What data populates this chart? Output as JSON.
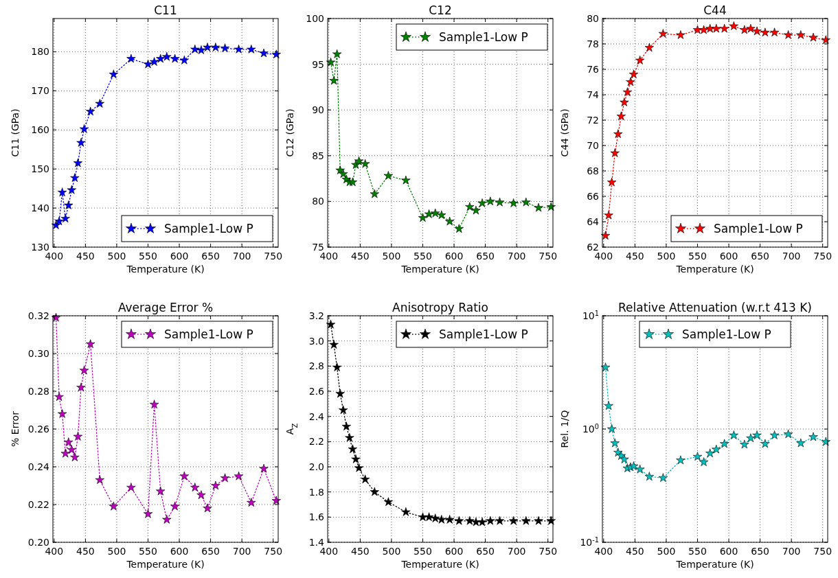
{
  "chart_data": [
    {
      "type": "line",
      "title": "C11",
      "xlabel": "Temperature (K)",
      "ylabel": "C11 (GPa)",
      "x": [
        403,
        408,
        413,
        418,
        423,
        428,
        433,
        438,
        443,
        448,
        458,
        473,
        495,
        523,
        550,
        560,
        570,
        580,
        593,
        608,
        625,
        635,
        645,
        658,
        673,
        695,
        715,
        735,
        755
      ],
      "series": [
        {
          "name": "Sample1-Low P",
          "color": "#0000ff",
          "values": [
            135.6,
            136.6,
            144.0,
            137.3,
            140.7,
            144.6,
            147.7,
            151.5,
            156.7,
            160.2,
            164.7,
            166.7,
            174.2,
            178.2,
            176.8,
            177.4,
            178.2,
            178.7,
            178.2,
            177.8,
            180.6,
            180.4,
            181.1,
            181.1,
            180.9,
            180.6,
            180.6,
            179.6,
            179.3
          ]
        }
      ],
      "xlim": [
        398,
        758
      ],
      "xticks": [
        400,
        450,
        500,
        550,
        600,
        650,
        700,
        750
      ],
      "ylim": [
        130,
        188.5
      ],
      "yticks": [
        130,
        140,
        150,
        160,
        170,
        180
      ],
      "grid": true,
      "legend": "bottom right",
      "marker": "star",
      "line_style": "dotted"
    },
    {
      "type": "line",
      "title": "C12",
      "xlabel": "Temperature (K)",
      "ylabel": "C12 (GPa)",
      "x": [
        403,
        408,
        413,
        418,
        423,
        428,
        433,
        438,
        443,
        448,
        458,
        473,
        495,
        523,
        550,
        560,
        570,
        580,
        593,
        608,
        625,
        635,
        645,
        658,
        673,
        695,
        715,
        735,
        755
      ],
      "series": [
        {
          "name": "Sample1-Low P",
          "color": "#008000",
          "values": [
            95.2,
            93.2,
            96.1,
            83.4,
            83.0,
            82.4,
            82.1,
            82.1,
            84.0,
            84.4,
            84.1,
            80.8,
            82.8,
            82.3,
            78.2,
            78.6,
            78.7,
            78.5,
            77.8,
            77.0,
            79.4,
            79.0,
            79.8,
            80.0,
            79.9,
            79.8,
            79.9,
            79.3,
            79.4
          ]
        }
      ],
      "xlim": [
        398,
        758
      ],
      "xticks": [
        400,
        450,
        500,
        550,
        600,
        650,
        700,
        750
      ],
      "ylim": [
        75,
        100
      ],
      "yticks": [
        75,
        80,
        85,
        90,
        95,
        100
      ],
      "grid": true,
      "legend": "top right",
      "marker": "star",
      "line_style": "dotted"
    },
    {
      "type": "line",
      "title": "C44",
      "xlabel": "Temperature (K)",
      "ylabel": "C44 (GPa)",
      "x": [
        403,
        408,
        413,
        418,
        423,
        428,
        433,
        438,
        443,
        448,
        458,
        473,
        495,
        523,
        550,
        560,
        570,
        580,
        593,
        608,
        625,
        635,
        645,
        658,
        673,
        695,
        715,
        735,
        755
      ],
      "series": [
        {
          "name": "Sample1-Low P",
          "color": "#ff0000",
          "values": [
            62.9,
            64.5,
            67.1,
            69.4,
            70.9,
            72.3,
            73.4,
            74.2,
            75.0,
            75.6,
            76.7,
            77.7,
            78.8,
            78.7,
            79.1,
            79.1,
            79.2,
            79.2,
            79.2,
            79.4,
            79.1,
            79.2,
            79.0,
            78.9,
            78.9,
            78.7,
            78.7,
            78.5,
            78.3
          ]
        }
      ],
      "xlim": [
        398,
        758
      ],
      "xticks": [
        400,
        450,
        500,
        550,
        600,
        650,
        700,
        750
      ],
      "ylim": [
        62,
        80
      ],
      "yticks": [
        62,
        64,
        66,
        68,
        70,
        72,
        74,
        76,
        78,
        80
      ],
      "grid": true,
      "legend": "bottom right",
      "marker": "star",
      "line_style": "dotted"
    },
    {
      "type": "line",
      "title": "Average Error %",
      "xlabel": "Temperature (K)",
      "ylabel": "% Error",
      "x": [
        403,
        408,
        413,
        418,
        423,
        428,
        433,
        438,
        443,
        448,
        458,
        473,
        495,
        523,
        550,
        560,
        570,
        580,
        593,
        608,
        625,
        635,
        645,
        658,
        673,
        695,
        715,
        735,
        755
      ],
      "series": [
        {
          "name": "Sample1-Low P",
          "color": "#bf00bf",
          "values": [
            0.319,
            0.277,
            0.268,
            0.247,
            0.253,
            0.249,
            0.245,
            0.256,
            0.282,
            0.291,
            0.305,
            0.233,
            0.219,
            0.229,
            0.215,
            0.273,
            0.227,
            0.212,
            0.219,
            0.235,
            0.229,
            0.225,
            0.218,
            0.23,
            0.234,
            0.235,
            0.221,
            0.239,
            0.222
          ]
        }
      ],
      "xlim": [
        398,
        758
      ],
      "xticks": [
        400,
        450,
        500,
        550,
        600,
        650,
        700,
        750
      ],
      "ylim": [
        0.2,
        0.32
      ],
      "yticks": [
        {
          "value": 0.2,
          "label": "0.20"
        },
        0.22,
        0.24,
        0.26,
        0.28,
        {
          "value": 0.3,
          "label": "0.30"
        },
        0.32
      ],
      "grid": true,
      "legend": "top right",
      "marker": "star",
      "line_style": "dotted"
    },
    {
      "type": "line",
      "title": "Anisotropy Ratio",
      "xlabel": "Temperature (K)",
      "ylabel": "A$_{Z}$",
      "x": [
        403,
        408,
        413,
        418,
        423,
        428,
        433,
        438,
        443,
        448,
        458,
        473,
        495,
        523,
        550,
        560,
        570,
        580,
        593,
        608,
        625,
        635,
        645,
        658,
        673,
        695,
        715,
        735,
        755
      ],
      "series": [
        {
          "name": "Sample1-Low P",
          "color": "#000000",
          "values": [
            3.13,
            2.97,
            2.79,
            2.58,
            2.45,
            2.32,
            2.23,
            2.14,
            2.06,
            1.99,
            1.9,
            1.8,
            1.72,
            1.64,
            1.6,
            1.6,
            1.59,
            1.58,
            1.58,
            1.57,
            1.57,
            1.56,
            1.56,
            1.57,
            1.57,
            1.57,
            1.57,
            1.57,
            1.57
          ]
        }
      ],
      "xlim": [
        398,
        758
      ],
      "xticks": [
        400,
        450,
        500,
        550,
        600,
        650,
        700,
        750
      ],
      "ylim": [
        1.4,
        3.2
      ],
      "yticks": [
        1.4,
        1.6,
        1.8,
        {
          "value": 2,
          "label": "2.0"
        },
        2.2,
        2.4,
        2.6,
        2.8,
        {
          "value": 3,
          "label": "3.0"
        },
        3.2
      ],
      "grid": true,
      "legend": "top right",
      "marker": "star",
      "line_style": "dotted"
    },
    {
      "type": "line",
      "title": "Relative Attenuation (w.r.t 413 K)",
      "xlabel": "Temperature (K)",
      "ylabel": "Rel. 1/Q",
      "x": [
        403,
        408,
        413,
        418,
        423,
        428,
        433,
        438,
        443,
        448,
        458,
        473,
        495,
        523,
        550,
        560,
        570,
        580,
        593,
        608,
        625,
        635,
        645,
        658,
        673,
        695,
        715,
        735,
        755
      ],
      "series": [
        {
          "name": "Sample1-Low P",
          "color": "#00bfbf",
          "values": [
            3.5,
            1.6,
            1.0,
            0.75,
            0.62,
            0.58,
            0.54,
            0.45,
            0.46,
            0.47,
            0.44,
            0.38,
            0.37,
            0.53,
            0.57,
            0.51,
            0.61,
            0.66,
            0.74,
            0.88,
            0.73,
            0.83,
            0.88,
            0.74,
            0.88,
            0.9,
            0.75,
            0.85,
            0.77
          ]
        }
      ],
      "xlim": [
        398,
        758
      ],
      "xticks": [
        400,
        450,
        500,
        550,
        600,
        650,
        700,
        750
      ],
      "ylim": [
        0.1,
        10
      ],
      "yticks": [
        {
          "value": 0.1,
          "label": "10$^{-1}$"
        },
        {
          "value": 1,
          "label": "10$^{0}$"
        },
        {
          "value": 10,
          "label": "10$^{1}$"
        }
      ],
      "log": "y",
      "grid": true,
      "legend": "top",
      "marker": "star",
      "line_style": "dotted"
    }
  ]
}
